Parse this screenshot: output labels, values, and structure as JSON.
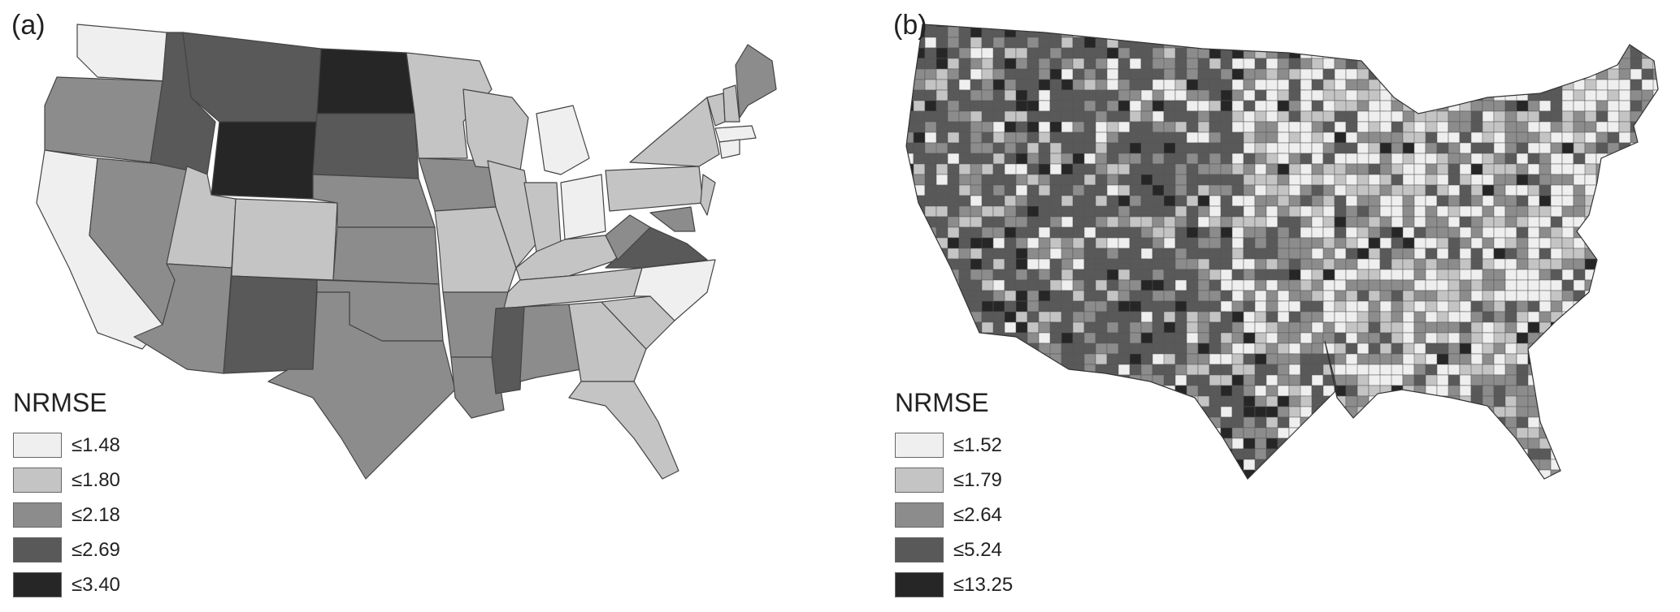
{
  "panels": [
    {
      "label": "(a)",
      "legend": {
        "title": "NRMSE",
        "items": [
          {
            "label": "≤1.48",
            "color": "#efefef"
          },
          {
            "label": "≤1.80",
            "color": "#c4c4c4"
          },
          {
            "label": "≤2.18",
            "color": "#8c8c8c"
          },
          {
            "label": "≤2.69",
            "color": "#595959"
          },
          {
            "label": "≤3.40",
            "color": "#262626"
          }
        ]
      }
    },
    {
      "label": "(b)",
      "legend": {
        "title": "NRMSE",
        "items": [
          {
            "label": "≤1.52",
            "color": "#efefef"
          },
          {
            "label": "≤1.79",
            "color": "#c4c4c4"
          },
          {
            "label": "≤2.64",
            "color": "#8c8c8c"
          },
          {
            "label": "≤5.24",
            "color": "#595959"
          },
          {
            "label": "≤13.25",
            "color": "#262626"
          }
        ]
      }
    }
  ]
}
